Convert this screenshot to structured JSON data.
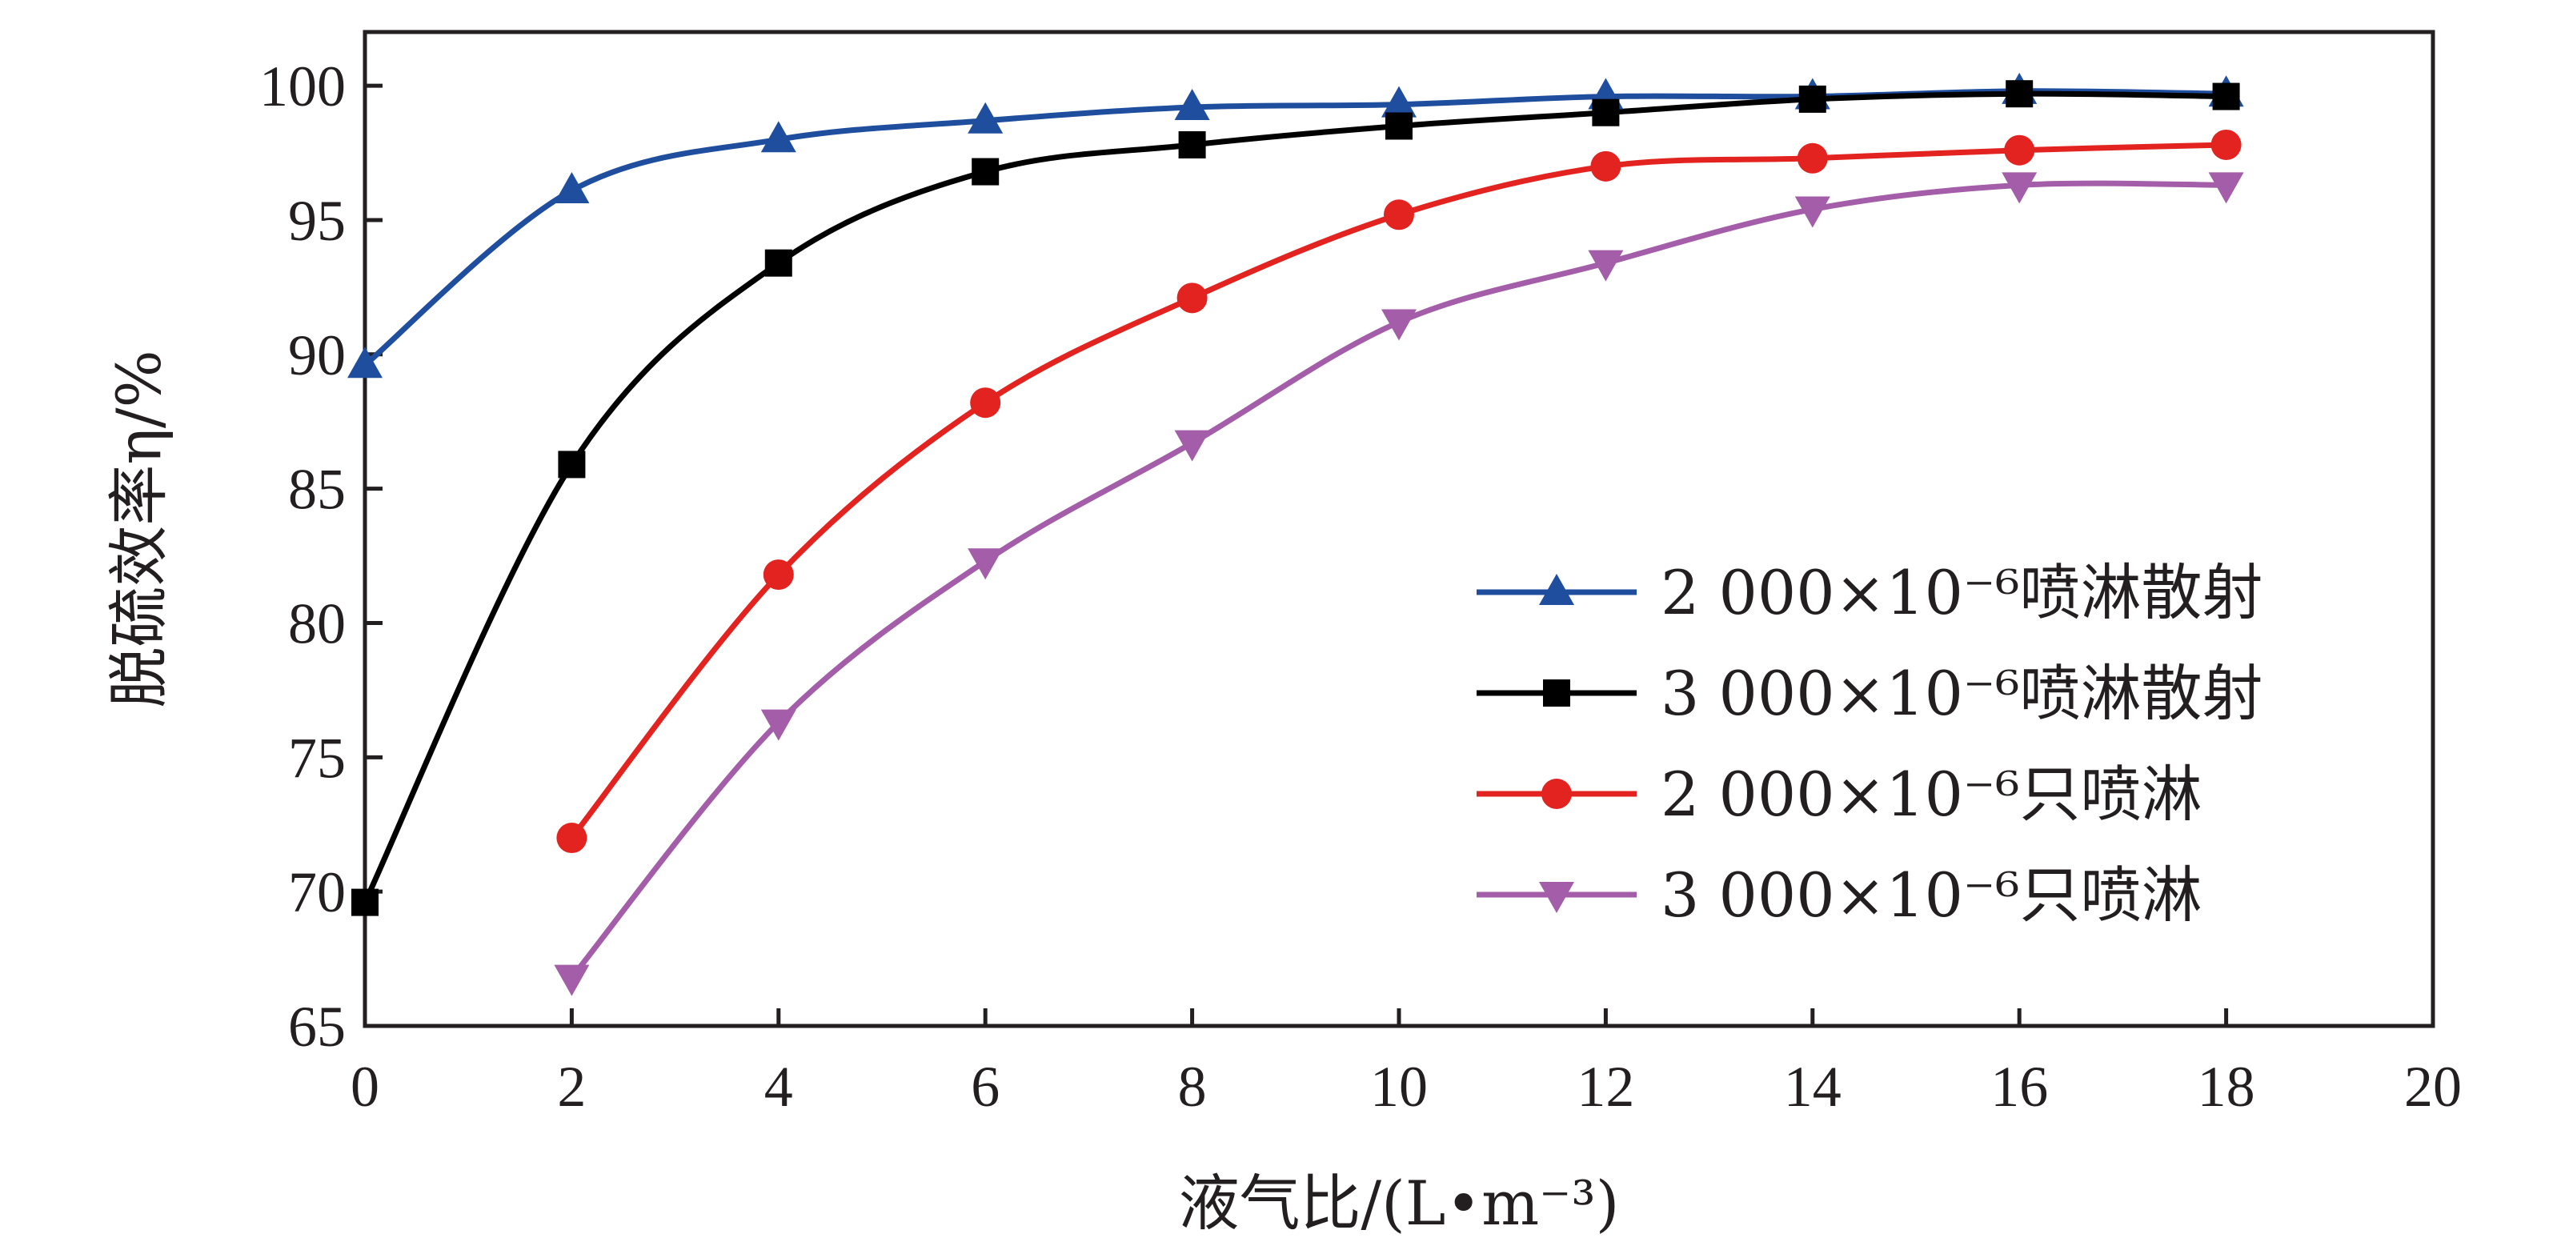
{
  "chart_data": {
    "type": "line",
    "xlabel": "液气比/(L•m⁻³)",
    "ylabel": "脱硫效率η/%",
    "xlim": [
      0,
      20
    ],
    "ylim": [
      65,
      102
    ],
    "xticks": [
      0,
      2,
      4,
      6,
      8,
      10,
      12,
      14,
      16,
      18,
      20
    ],
    "yticks": [
      65,
      70,
      75,
      80,
      85,
      90,
      95,
      100
    ],
    "grid": false,
    "legend_position": "bottom-right",
    "series": [
      {
        "name": "2 000×10⁻⁶喷淋散射",
        "color": "#1f4e9e",
        "marker": "triangle-up",
        "x": [
          0,
          2,
          4,
          6,
          8,
          10,
          12,
          14,
          16,
          18
        ],
        "y": [
          89.6,
          96.1,
          98.0,
          98.7,
          99.2,
          99.3,
          99.6,
          99.6,
          99.8,
          99.7
        ]
      },
      {
        "name": "3 000×10⁻⁶喷淋散射",
        "color": "#000000",
        "marker": "square",
        "x": [
          0,
          2,
          4,
          6,
          8,
          10,
          12,
          14,
          16,
          18
        ],
        "y": [
          69.6,
          85.9,
          93.4,
          96.8,
          97.8,
          98.5,
          99.0,
          99.5,
          99.7,
          99.6
        ]
      },
      {
        "name": "2 000×10⁻⁶只喷淋",
        "color": "#e3231f",
        "marker": "circle",
        "x": [
          2,
          4,
          6,
          8,
          10,
          12,
          14,
          16,
          18
        ],
        "y": [
          72.0,
          81.8,
          88.2,
          92.1,
          95.2,
          97.0,
          97.3,
          97.6,
          97.8
        ]
      },
      {
        "name": "3 000×10⁻⁶只喷淋",
        "color": "#a45da8",
        "marker": "triangle-down",
        "x": [
          2,
          4,
          6,
          8,
          10,
          12,
          14,
          16,
          18
        ],
        "y": [
          66.8,
          76.3,
          82.3,
          86.7,
          91.2,
          93.4,
          95.4,
          96.3,
          96.3
        ]
      }
    ]
  }
}
